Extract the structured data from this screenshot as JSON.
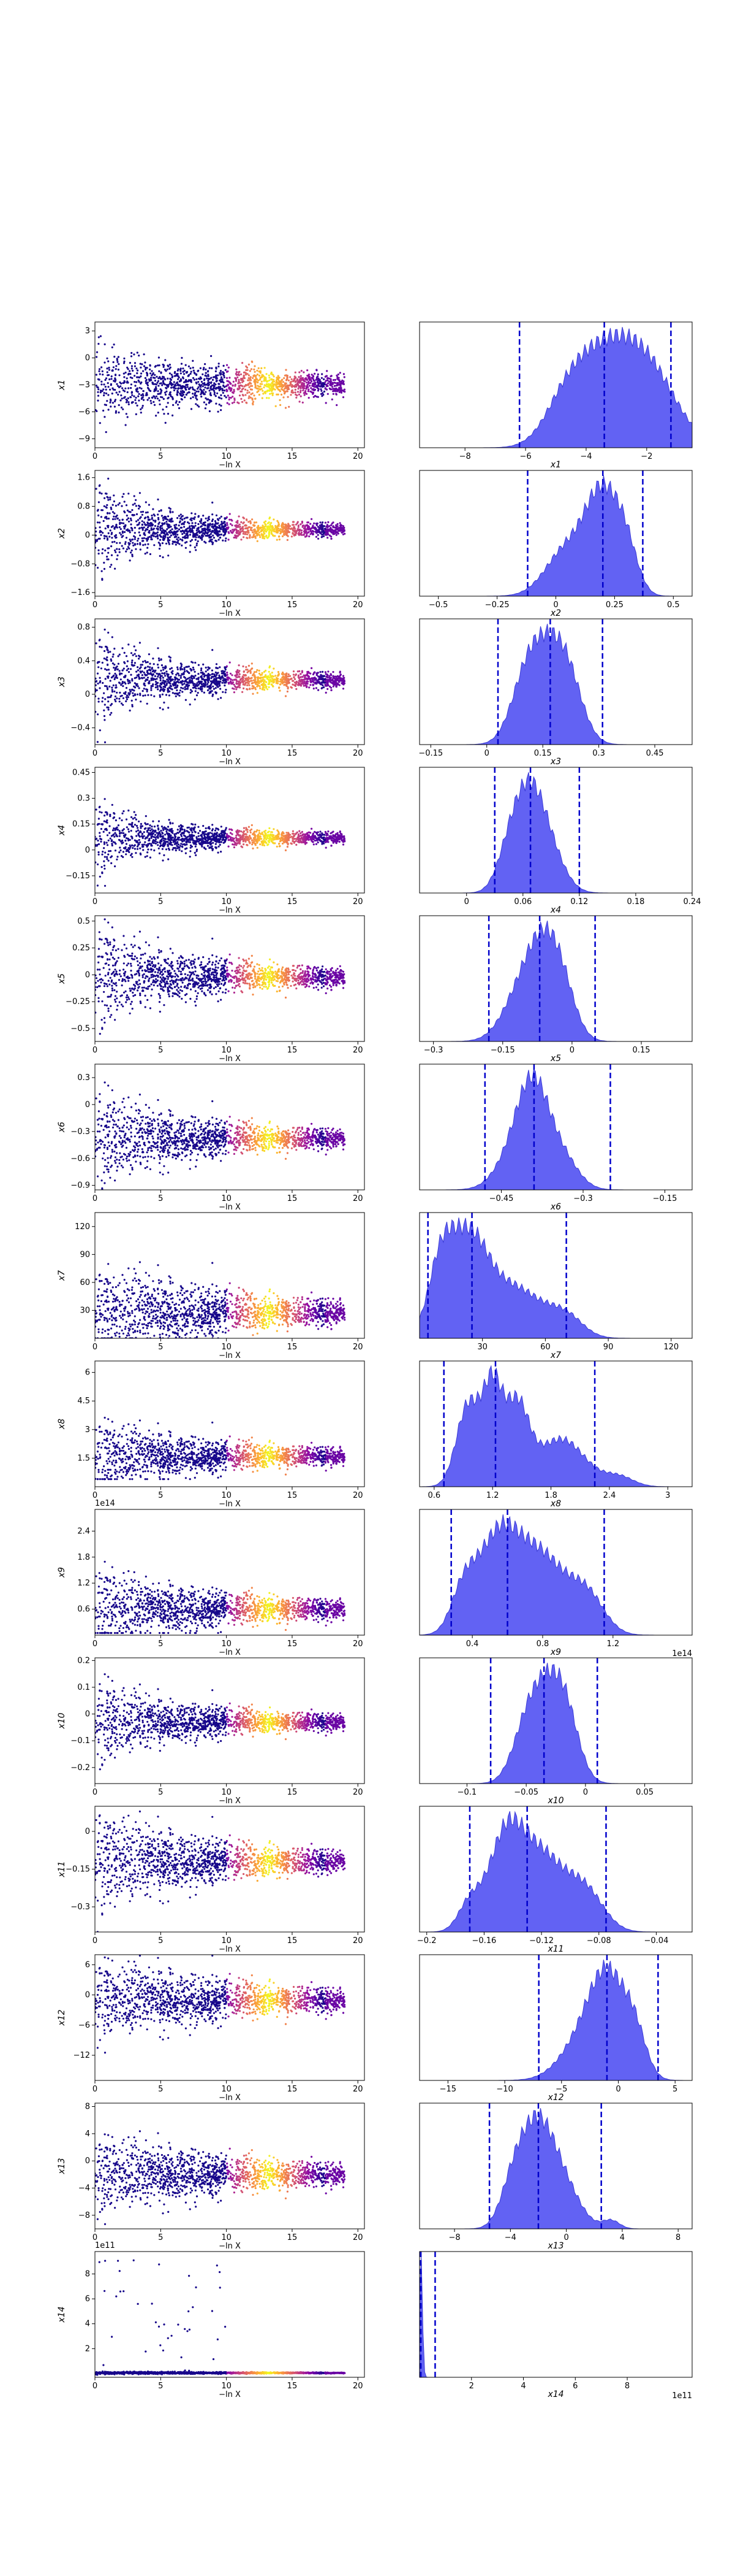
{
  "chart_data": [
    {
      "type": "scatter",
      "xlabel": "−ln X",
      "ylabel": "x1",
      "xlim": [
        0,
        20.5
      ],
      "xticks": [
        0,
        5,
        10,
        15,
        20
      ],
      "ylim": [
        -10,
        4
      ],
      "yticks": [
        -9,
        -6,
        -3,
        0,
        3
      ],
      "mean": -3,
      "spread": 1.6,
      "funnel": 0.6
    },
    {
      "type": "area",
      "xlabel": "x1",
      "xlim": [
        -9.5,
        -0.5
      ],
      "xticks": [
        -8,
        -6,
        -4,
        -2
      ],
      "quantile_lines": [
        -6.2,
        -3.4,
        -1.2
      ],
      "peaks": [
        [
          -3.6,
          1.0,
          0.9
        ],
        [
          -2.1,
          1.2,
          1.0
        ],
        [
          -4.7,
          0.5,
          0.7
        ]
      ]
    },
    {
      "type": "scatter",
      "xlabel": "−ln X",
      "ylabel": "x2",
      "xlim": [
        0,
        20.5
      ],
      "xticks": [
        0,
        5,
        10,
        15,
        20
      ],
      "ylim": [
        -1.7,
        1.8
      ],
      "yticks": [
        -1.6,
        -0.8,
        0.0,
        0.8,
        1.6
      ],
      "mean": 0.15,
      "spread": 0.25,
      "funnel": 3
    },
    {
      "type": "area",
      "xlabel": "x2",
      "xlim": [
        -0.58,
        0.58
      ],
      "xticks": [
        -0.5,
        -0.25,
        0.0,
        0.25,
        0.5
      ],
      "quantile_lines": [
        -0.12,
        0.2,
        0.37
      ],
      "peaks": [
        [
          0.2,
          1.2,
          0.07
        ],
        [
          0.05,
          0.6,
          0.09
        ],
        [
          0.3,
          0.5,
          0.05
        ]
      ]
    },
    {
      "type": "scatter",
      "xlabel": "−ln X",
      "ylabel": "x3",
      "xlim": [
        0,
        20.5
      ],
      "xticks": [
        0,
        5,
        10,
        15,
        20
      ],
      "ylim": [
        -0.6,
        0.9
      ],
      "yticks": [
        -0.4,
        0.0,
        0.4,
        0.8
      ],
      "mean": 0.17,
      "spread": 0.12,
      "funnel": 2.2
    },
    {
      "type": "area",
      "xlabel": "x3",
      "xlim": [
        -0.18,
        0.55
      ],
      "xticks": [
        -0.15,
        0.0,
        0.15,
        0.3,
        0.45
      ],
      "quantile_lines": [
        0.03,
        0.17,
        0.31
      ],
      "peaks": [
        [
          0.16,
          1.0,
          0.05
        ],
        [
          0.22,
          0.55,
          0.04
        ],
        [
          0.1,
          0.5,
          0.04
        ]
      ]
    },
    {
      "type": "scatter",
      "xlabel": "−ln X",
      "ylabel": "x4",
      "xlim": [
        0,
        20.5
      ],
      "xticks": [
        0,
        5,
        10,
        15,
        20
      ],
      "ylim": [
        -0.25,
        0.48
      ],
      "yticks": [
        -0.15,
        0.0,
        0.15,
        0.3,
        0.45
      ],
      "mean": 0.07,
      "spread": 0.045,
      "funnel": 2.2
    },
    {
      "type": "area",
      "xlabel": "x4",
      "xlim": [
        -0.05,
        0.24
      ],
      "xticks": [
        0.0,
        0.06,
        0.12,
        0.18,
        0.24
      ],
      "quantile_lines": [
        0.03,
        0.068,
        0.12
      ],
      "peaks": [
        [
          0.065,
          1.0,
          0.015
        ],
        [
          0.085,
          0.6,
          0.017
        ],
        [
          0.045,
          0.45,
          0.013
        ]
      ]
    },
    {
      "type": "scatter",
      "xlabel": "−ln X",
      "ylabel": "x5",
      "xlim": [
        0,
        20.5
      ],
      "xticks": [
        0,
        5,
        10,
        15,
        20
      ],
      "ylim": [
        -0.62,
        0.55
      ],
      "yticks": [
        -0.5,
        -0.25,
        0.0,
        0.25,
        0.5
      ],
      "mean": -0.02,
      "spread": 0.12,
      "funnel": 1.8
    },
    {
      "type": "area",
      "xlabel": "x5",
      "xlim": [
        -0.33,
        0.26
      ],
      "xticks": [
        -0.3,
        -0.15,
        0.0,
        0.15
      ],
      "quantile_lines": [
        -0.18,
        -0.07,
        0.05
      ],
      "peaks": [
        [
          -0.06,
          1.0,
          0.035
        ],
        [
          -0.11,
          0.6,
          0.04
        ],
        [
          -0.02,
          0.5,
          0.03
        ]
      ]
    },
    {
      "type": "scatter",
      "xlabel": "−ln X",
      "ylabel": "x6",
      "xlim": [
        0,
        20.5
      ],
      "xticks": [
        0,
        5,
        10,
        15,
        20
      ],
      "ylim": [
        -0.95,
        0.45
      ],
      "yticks": [
        -0.9,
        -0.6,
        -0.3,
        0.0,
        0.3
      ],
      "mean": -0.38,
      "spread": 0.14,
      "funnel": 1.8
    },
    {
      "type": "area",
      "xlabel": "x6",
      "xlim": [
        -0.6,
        -0.1
      ],
      "xticks": [
        -0.45,
        -0.3,
        -0.15
      ],
      "quantile_lines": [
        -0.48,
        -0.39,
        -0.25
      ],
      "peaks": [
        [
          -0.39,
          1.0,
          0.028
        ],
        [
          -0.42,
          0.5,
          0.035
        ],
        [
          -0.34,
          0.4,
          0.03
        ]
      ]
    },
    {
      "type": "scatter",
      "xlabel": "−ln X",
      "ylabel": "x7",
      "xlim": [
        0,
        20.5
      ],
      "xticks": [
        0,
        5,
        10,
        15,
        20
      ],
      "ylim": [
        0,
        135
      ],
      "yticks": [
        30,
        60,
        90,
        120
      ],
      "mean": 28,
      "spread": 18,
      "funnel": 0.7,
      "clip_min": 0
    },
    {
      "type": "area",
      "xlabel": "x7",
      "xlim": [
        0,
        130
      ],
      "xticks": [
        30,
        60,
        90,
        120
      ],
      "quantile_lines": [
        4,
        25,
        70
      ],
      "peaks": [
        [
          23,
          1.0,
          9
        ],
        [
          10,
          0.7,
          6
        ],
        [
          45,
          0.55,
          14
        ],
        [
          70,
          0.2,
          8
        ]
      ]
    },
    {
      "type": "scatter",
      "xlabel": "−ln X",
      "ylabel": "x8",
      "xlim": [
        0,
        20.5
      ],
      "xticks": [
        0,
        5,
        10,
        15,
        20
      ],
      "ylim": [
        0,
        6.6
      ],
      "yticks": [
        1.5,
        3.0,
        4.5,
        6.0
      ],
      "mean": 1.6,
      "spread": 0.6,
      "funnel": 1.0,
      "clip_min": 0.4
    },
    {
      "type": "area",
      "xlabel": "x8",
      "xlim": [
        0.45,
        3.25
      ],
      "xticks": [
        0.6,
        1.2,
        1.8,
        2.4,
        3.0
      ],
      "quantile_lines": [
        0.7,
        1.23,
        2.25
      ],
      "peaks": [
        [
          0.95,
          0.85,
          0.12
        ],
        [
          1.2,
          1.0,
          0.1
        ],
        [
          1.45,
          0.8,
          0.12
        ],
        [
          1.9,
          0.5,
          0.25
        ],
        [
          2.5,
          0.1,
          0.15
        ]
      ]
    },
    {
      "type": "scatter",
      "xlabel": "−ln X",
      "ylabel": "x9",
      "offset_text": "1e14",
      "xlim": [
        0,
        20.5
      ],
      "xticks": [
        0,
        5,
        10,
        15,
        20
      ],
      "ylim": [
        0,
        2.9
      ],
      "yticks": [
        0.6,
        1.2,
        1.8,
        2.4
      ],
      "mean": 0.6,
      "spread": 0.3,
      "funnel": 1.2,
      "clip_min": 0.05
    },
    {
      "type": "area",
      "xlabel": "x9",
      "offset_text": "1e14",
      "xlim": [
        0.1,
        1.65
      ],
      "xticks": [
        0.4,
        0.8,
        1.2
      ],
      "quantile_lines": [
        0.28,
        0.6,
        1.15
      ],
      "peaks": [
        [
          0.55,
          1.0,
          0.12
        ],
        [
          0.8,
          0.75,
          0.13
        ],
        [
          1.05,
          0.4,
          0.1
        ],
        [
          0.35,
          0.4,
          0.07
        ]
      ]
    },
    {
      "type": "scatter",
      "xlabel": "−ln X",
      "ylabel": "x10",
      "xlim": [
        0,
        20.5
      ],
      "xticks": [
        0,
        5,
        10,
        15,
        20
      ],
      "ylim": [
        -0.26,
        0.21
      ],
      "yticks": [
        -0.2,
        -0.1,
        0.0,
        0.1,
        0.2
      ],
      "mean": -0.03,
      "spread": 0.04,
      "funnel": 1.8
    },
    {
      "type": "area",
      "xlabel": "x10",
      "xlim": [
        -0.14,
        0.09
      ],
      "xticks": [
        -0.1,
        -0.05,
        0.0,
        0.05
      ],
      "quantile_lines": [
        -0.08,
        -0.035,
        0.01
      ],
      "peaks": [
        [
          -0.03,
          1.0,
          0.014
        ],
        [
          -0.05,
          0.55,
          0.012
        ],
        [
          -0.015,
          0.45,
          0.011
        ]
      ]
    },
    {
      "type": "scatter",
      "xlabel": "−ln X",
      "ylabel": "x11",
      "xlim": [
        0,
        20.5
      ],
      "xticks": [
        0,
        5,
        10,
        15,
        20
      ],
      "ylim": [
        -0.4,
        0.1
      ],
      "yticks": [
        -0.3,
        -0.15,
        0.0
      ],
      "mean": -0.12,
      "spread": 0.06,
      "funnel": 1.4
    },
    {
      "type": "area",
      "xlabel": "x11",
      "xlim": [
        -0.205,
        -0.015
      ],
      "xticks": [
        -0.2,
        -0.16,
        -0.12,
        -0.08,
        -0.04
      ],
      "quantile_lines": [
        -0.17,
        -0.13,
        -0.075
      ],
      "peaks": [
        [
          -0.145,
          1.0,
          0.012
        ],
        [
          -0.12,
          0.8,
          0.015
        ],
        [
          -0.09,
          0.45,
          0.013
        ],
        [
          -0.17,
          0.3,
          0.008
        ]
      ]
    },
    {
      "type": "scatter",
      "xlabel": "−ln X",
      "ylabel": "x12",
      "xlim": [
        0,
        20.5
      ],
      "xticks": [
        0,
        5,
        10,
        15,
        20
      ],
      "ylim": [
        -17,
        8
      ],
      "yticks": [
        -12,
        -6,
        0,
        6
      ],
      "mean": -1,
      "spread": 3.0,
      "funnel": 0.6
    },
    {
      "type": "area",
      "xlabel": "x12",
      "xlim": [
        -17.5,
        6.5
      ],
      "xticks": [
        -15,
        -10,
        -5,
        0,
        5
      ],
      "quantile_lines": [
        -7,
        -1,
        3.5
      ],
      "peaks": [
        [
          -0.8,
          1.0,
          1.6
        ],
        [
          -3,
          0.45,
          2.0
        ],
        [
          1.5,
          0.4,
          1.0
        ]
      ]
    },
    {
      "type": "scatter",
      "xlabel": "−ln X",
      "ylabel": "x13",
      "xlim": [
        0,
        20.5
      ],
      "xticks": [
        0,
        5,
        10,
        15,
        20
      ],
      "ylim": [
        -10,
        8.5
      ],
      "yticks": [
        -8,
        -4,
        0,
        4,
        8
      ],
      "mean": -2,
      "spread": 2.2,
      "funnel": 0.5
    },
    {
      "type": "area",
      "xlabel": "x13",
      "xlim": [
        -10.5,
        9
      ],
      "xticks": [
        -8,
        -4,
        0,
        4,
        8
      ],
      "quantile_lines": [
        -5.5,
        -2,
        2.5
      ],
      "peaks": [
        [
          -2.2,
          1.0,
          1.1
        ],
        [
          -0.5,
          0.6,
          1.3
        ],
        [
          -3.8,
          0.5,
          0.9
        ],
        [
          3.2,
          0.1,
          0.6
        ]
      ]
    },
    {
      "type": "scatter",
      "xlabel": "−ln X",
      "ylabel": "x14",
      "offset_text": "1e11",
      "xlim": [
        0,
        20.5
      ],
      "xticks": [
        0,
        5,
        10,
        15,
        20
      ],
      "ylim": [
        -0.3,
        9.8
      ],
      "yticks": [
        2,
        4,
        6,
        8
      ],
      "mean": 0.05,
      "spread": 0.05,
      "funnel": 0,
      "outliers": true
    },
    {
      "type": "area",
      "xlabel": "x14",
      "offset_text": "1e11",
      "xlim": [
        0,
        10.5
      ],
      "xticks": [
        2,
        4,
        6,
        8
      ],
      "quantile_lines": [
        0.02,
        0.05,
        0.6
      ],
      "peaks": [
        [
          0.05,
          1.0,
          0.06
        ]
      ]
    }
  ]
}
